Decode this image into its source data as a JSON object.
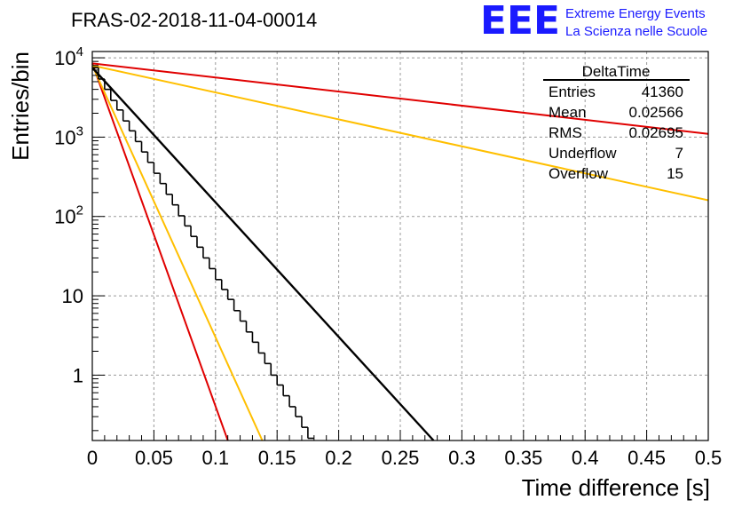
{
  "header": {
    "run_title": "FRAS-02-2018-11-04-00014",
    "logo_text": "EEE",
    "logo_line1": "Extreme Energy Events",
    "logo_line2": "La Scienza nelle Scuole"
  },
  "stats_box": {
    "title": "DeltaTime",
    "rows": [
      {
        "label": "Entries",
        "value": "41360"
      },
      {
        "label": "Mean",
        "value": "0.02566"
      },
      {
        "label": "RMS",
        "value": "0.02695"
      },
      {
        "label": "Underflow",
        "value": "7"
      },
      {
        "label": "Overflow",
        "value": "15"
      }
    ]
  },
  "colors": {
    "histogram": "#000000",
    "fit": "#000000",
    "red_curve": "#e00000",
    "orange_curve": "#ffbf00",
    "grid": "#9a9a9a"
  },
  "chart_data": {
    "type": "histogram",
    "xlabel": "Time difference [s]",
    "ylabel": "Entries/bin",
    "xlim": [
      0,
      0.5
    ],
    "ylim": [
      0.15,
      12000
    ],
    "yscale": "log",
    "grid": true,
    "x_ticks": [
      "0",
      "0.05",
      "0.1",
      "0.15",
      "0.2",
      "0.25",
      "0.3",
      "0.35",
      "0.4",
      "0.45",
      "0.5"
    ],
    "y_ticks": [
      "1",
      "10",
      "10^2",
      "10^3",
      "10^4"
    ],
    "bin_width": 0.005,
    "histogram_bins": [
      {
        "x": 0.0,
        "y": 7500
      },
      {
        "x": 0.005,
        "y": 5400
      },
      {
        "x": 0.01,
        "y": 4000
      },
      {
        "x": 0.015,
        "y": 2900
      },
      {
        "x": 0.02,
        "y": 2200
      },
      {
        "x": 0.025,
        "y": 1600
      },
      {
        "x": 0.03,
        "y": 1200
      },
      {
        "x": 0.035,
        "y": 880
      },
      {
        "x": 0.04,
        "y": 650
      },
      {
        "x": 0.045,
        "y": 480
      },
      {
        "x": 0.05,
        "y": 350
      },
      {
        "x": 0.055,
        "y": 260
      },
      {
        "x": 0.06,
        "y": 190
      },
      {
        "x": 0.065,
        "y": 140
      },
      {
        "x": 0.07,
        "y": 102
      },
      {
        "x": 0.075,
        "y": 76
      },
      {
        "x": 0.08,
        "y": 56
      },
      {
        "x": 0.085,
        "y": 41
      },
      {
        "x": 0.09,
        "y": 30
      },
      {
        "x": 0.095,
        "y": 22
      },
      {
        "x": 0.1,
        "y": 16
      },
      {
        "x": 0.105,
        "y": 12
      },
      {
        "x": 0.11,
        "y": 9
      },
      {
        "x": 0.115,
        "y": 6.5
      },
      {
        "x": 0.12,
        "y": 4.8
      },
      {
        "x": 0.125,
        "y": 3.5
      },
      {
        "x": 0.13,
        "y": 2.6
      },
      {
        "x": 0.135,
        "y": 1.9
      },
      {
        "x": 0.14,
        "y": 1.4
      },
      {
        "x": 0.145,
        "y": 1.0
      },
      {
        "x": 0.15,
        "y": 0.75
      },
      {
        "x": 0.155,
        "y": 0.55
      },
      {
        "x": 0.16,
        "y": 0.4
      },
      {
        "x": 0.165,
        "y": 0.3
      },
      {
        "x": 0.17,
        "y": 0.22
      },
      {
        "x": 0.175,
        "y": 0.16
      }
    ],
    "fit_line": {
      "x": [
        0.0,
        0.277
      ],
      "y": [
        7500,
        0.15
      ]
    },
    "red_curves": [
      {
        "x": [
          0.0,
          0.5
        ],
        "y": [
          8500,
          1100
        ]
      },
      {
        "x": [
          0.0,
          0.11
        ],
        "y": [
          8500,
          0.15
        ]
      }
    ],
    "orange_curves": [
      {
        "x": [
          0.0,
          0.5
        ],
        "y": [
          8000,
          160
        ]
      },
      {
        "x": [
          0.0,
          0.138
        ],
        "y": [
          8000,
          0.15
        ]
      }
    ]
  }
}
